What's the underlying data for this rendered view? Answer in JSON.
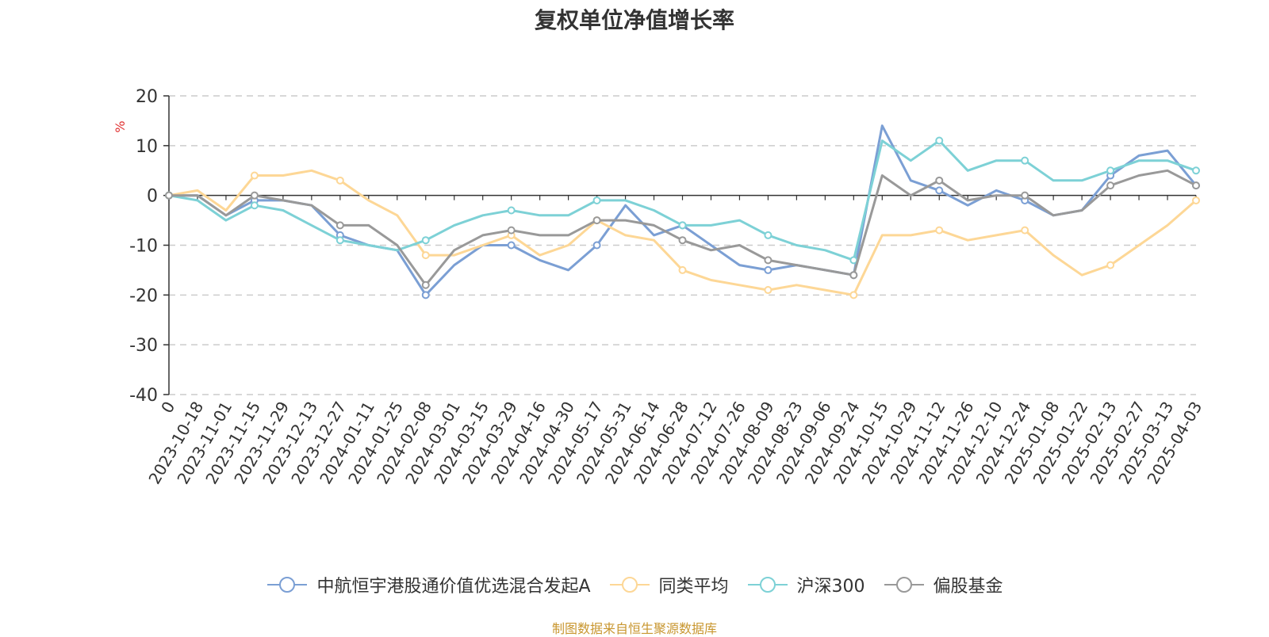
{
  "chart_data": {
    "type": "line",
    "title": "复权单位净值增长率",
    "ylabel": "%",
    "ylim": [
      -40,
      20
    ],
    "yticks": [
      20,
      10,
      0,
      -10,
      -20,
      -30,
      -40
    ],
    "grid": true,
    "legend_position": "bottom",
    "x_tick_labels": [
      "0",
      "2023-10-18",
      "2023-11-01",
      "2023-11-15",
      "2023-11-29",
      "2023-12-13",
      "2023-12-27",
      "2024-01-11",
      "2024-01-25",
      "2024-02-08",
      "2024-03-01",
      "2024-03-15",
      "2024-03-29",
      "2024-04-16",
      "2024-04-30",
      "2024-05-17",
      "2024-05-31",
      "2024-06-14",
      "2024-06-28",
      "2024-07-12",
      "2024-07-26",
      "2024-08-09",
      "2024-08-23",
      "2024-09-06",
      "2024-09-24",
      "2024-10-15",
      "2024-10-29",
      "2024-11-12",
      "2024-11-26",
      "2024-12-10",
      "2024-12-24",
      "2025-01-08",
      "2025-01-22",
      "2025-02-13",
      "2025-02-27",
      "2025-03-13",
      "2025-04-03"
    ],
    "series": [
      {
        "name": "中航恒宇港股通价值优选混合发起A",
        "color": "#7b9fd4",
        "values": [
          0,
          0,
          -4,
          -1,
          -1,
          -2,
          -8,
          -10,
          -11,
          -20,
          -14,
          -10,
          -10,
          -13,
          -15,
          -10,
          -2,
          -8,
          -6,
          -10,
          -14,
          -15,
          -14,
          -15,
          -16,
          14,
          3,
          1,
          -2,
          1,
          -1,
          -4,
          -3,
          4,
          8,
          9,
          2
        ]
      },
      {
        "name": "同类平均",
        "color": "#fdd796",
        "values": [
          0,
          1,
          -3,
          4,
          4,
          5,
          3,
          -1,
          -4,
          -12,
          -12,
          -10,
          -8,
          -12,
          -10,
          -5,
          -8,
          -9,
          -15,
          -17,
          -18,
          -19,
          -18,
          -19,
          -20,
          -8,
          -8,
          -7,
          -9,
          -8,
          -7,
          -12,
          -16,
          -14,
          -10,
          -6,
          -1
        ]
      },
      {
        "name": "沪深300",
        "color": "#7dd1d6",
        "values": [
          0,
          -1,
          -5,
          -2,
          -3,
          -6,
          -9,
          -10,
          -11,
          -9,
          -6,
          -4,
          -3,
          -4,
          -4,
          -1,
          -1,
          -3,
          -6,
          -6,
          -5,
          -8,
          -10,
          -11,
          -13,
          11,
          7,
          11,
          5,
          7,
          7,
          3,
          3,
          5,
          7,
          7,
          5
        ]
      },
      {
        "name": "偏股基金",
        "color": "#999999",
        "values": [
          0,
          0,
          -4,
          0,
          -1,
          -2,
          -6,
          -6,
          -10,
          -18,
          -11,
          -8,
          -7,
          -8,
          -8,
          -5,
          -5,
          -6,
          -9,
          -11,
          -10,
          -13,
          -14,
          -15,
          -16,
          4,
          0,
          3,
          -1,
          0,
          0,
          -4,
          -3,
          2,
          4,
          5,
          2
        ]
      }
    ]
  },
  "source_note": "制图数据来自恒生聚源数据库"
}
